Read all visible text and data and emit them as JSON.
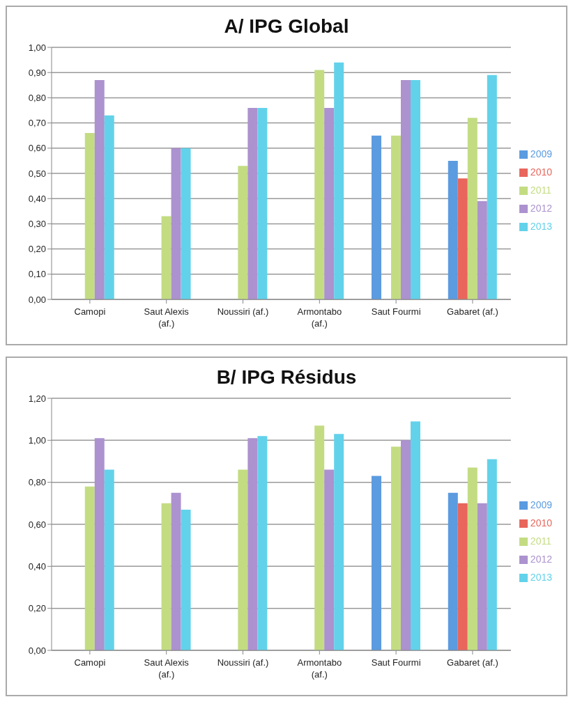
{
  "chart_data": [
    {
      "type": "bar",
      "title": "A/ IPG Global",
      "categories": [
        "Camopi",
        "Saut Alexis (af.)",
        "Noussiri (af.)",
        "Armontabo (af.)",
        "Saut Fourmi",
        "Gabaret (af.)"
      ],
      "series": [
        {
          "name": "2009",
          "color": "#5b9be0",
          "values": [
            null,
            null,
            null,
            null,
            0.65,
            0.55
          ]
        },
        {
          "name": "2010",
          "color": "#e8665c",
          "values": [
            null,
            null,
            null,
            null,
            null,
            0.48
          ]
        },
        {
          "name": "2011",
          "color": "#c3dc82",
          "values": [
            0.66,
            0.33,
            0.53,
            0.91,
            0.65,
            0.72
          ]
        },
        {
          "name": "2012",
          "color": "#ac92cf",
          "values": [
            0.87,
            0.6,
            0.76,
            0.76,
            0.87,
            0.39
          ]
        },
        {
          "name": "2013",
          "color": "#62d2ea",
          "values": [
            0.73,
            0.6,
            0.76,
            0.94,
            0.87,
            0.89
          ]
        }
      ],
      "ylim": [
        0,
        1
      ],
      "yticks": [
        {
          "value": 0,
          "label": "0,00"
        },
        {
          "value": 0.1,
          "label": "0,10"
        },
        {
          "value": 0.2,
          "label": "0,20"
        },
        {
          "value": 0.3,
          "label": "0,30"
        },
        {
          "value": 0.4,
          "label": "0,40"
        },
        {
          "value": 0.5,
          "label": "0,50"
        },
        {
          "value": 0.6,
          "label": "0,60"
        },
        {
          "value": 0.7,
          "label": "0,70"
        },
        {
          "value": 0.8,
          "label": "0,80"
        },
        {
          "value": 0.9,
          "label": "0,90"
        },
        {
          "value": 1,
          "label": "1,00"
        }
      ],
      "grid": "y",
      "legend": "right"
    },
    {
      "type": "bar",
      "title": "B/ IPG Résidus",
      "categories": [
        "Camopi",
        "Saut Alexis (af.)",
        "Noussiri (af.)",
        "Armontabo (af.)",
        "Saut Fourmi",
        "Gabaret (af.)"
      ],
      "series": [
        {
          "name": "2009",
          "color": "#5b9be0",
          "values": [
            null,
            null,
            null,
            null,
            0.83,
            0.75
          ]
        },
        {
          "name": "2010",
          "color": "#e8665c",
          "values": [
            null,
            null,
            null,
            null,
            null,
            0.7
          ]
        },
        {
          "name": "2011",
          "color": "#c3dc82",
          "values": [
            0.78,
            0.7,
            0.86,
            1.07,
            0.97,
            0.87
          ]
        },
        {
          "name": "2012",
          "color": "#ac92cf",
          "values": [
            1.01,
            0.75,
            1.01,
            0.86,
            1.0,
            0.7
          ]
        },
        {
          "name": "2013",
          "color": "#62d2ea",
          "values": [
            0.86,
            0.67,
            1.02,
            1.03,
            1.09,
            0.91
          ]
        }
      ],
      "ylim": [
        0,
        1.2
      ],
      "yticks": [
        {
          "value": 0,
          "label": "0,00"
        },
        {
          "value": 0.2,
          "label": "0,20"
        },
        {
          "value": 0.4,
          "label": "0,40"
        },
        {
          "value": 0.6,
          "label": "0,60"
        },
        {
          "value": 0.8,
          "label": "0,80"
        },
        {
          "value": 1,
          "label": "1,00"
        },
        {
          "value": 1.2,
          "label": "1,20"
        }
      ],
      "grid": "y",
      "legend": "right"
    }
  ]
}
